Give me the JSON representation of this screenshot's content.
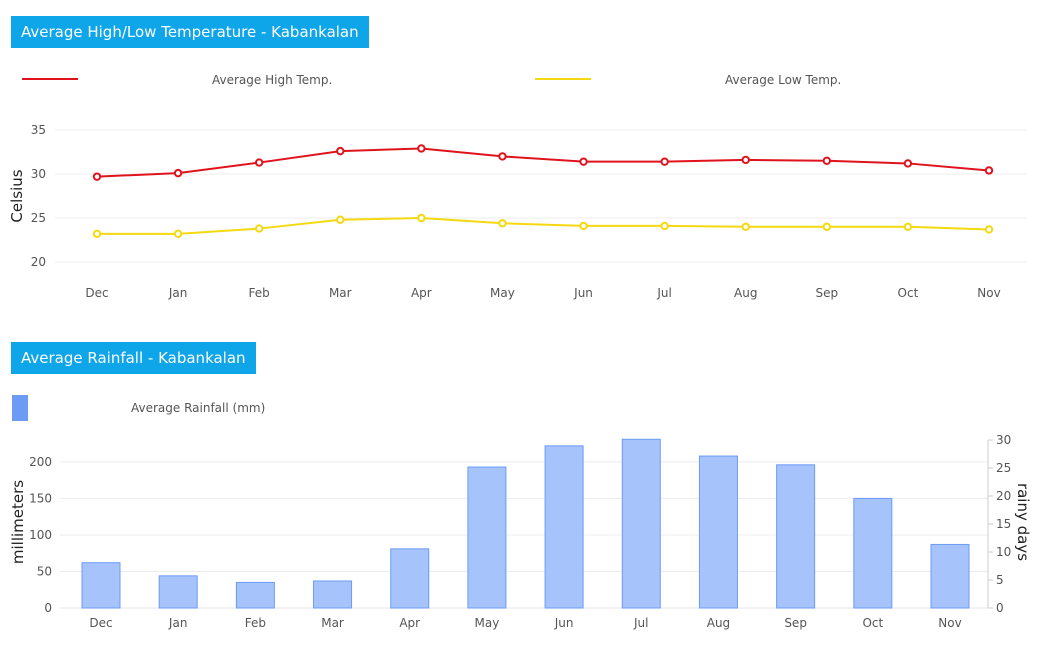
{
  "chart_data": [
    {
      "type": "line",
      "title": "Average High/Low Temperature - Kabankalan",
      "ylabel": "Celsius",
      "xlabel": "",
      "categories": [
        "Dec",
        "Jan",
        "Feb",
        "Mar",
        "Apr",
        "May",
        "Jun",
        "Jul",
        "Aug",
        "Sep",
        "Oct",
        "Nov"
      ],
      "ylim": [
        20,
        35
      ],
      "yticks": [
        20,
        25,
        30,
        35
      ],
      "grid": true,
      "legend_position": "top",
      "series": [
        {
          "name": "Average High Temp.",
          "color": "#e0131c",
          "values": [
            29.7,
            30.1,
            31.3,
            32.6,
            32.9,
            32.0,
            31.4,
            31.4,
            31.6,
            31.5,
            31.2,
            30.4
          ]
        },
        {
          "name": "Average Low Temp.",
          "color": "#f5d90f",
          "values": [
            23.2,
            23.2,
            23.8,
            24.8,
            25.0,
            24.4,
            24.1,
            24.1,
            24.0,
            24.0,
            24.0,
            23.7
          ]
        }
      ]
    },
    {
      "type": "bar",
      "title": "Average Rainfall - Kabankalan",
      "ylabel": "millimeters",
      "y2label": "rainy days",
      "xlabel": "",
      "categories": [
        "Dec",
        "Jan",
        "Feb",
        "Mar",
        "Apr",
        "May",
        "Jun",
        "Jul",
        "Aug",
        "Sep",
        "Oct",
        "Nov"
      ],
      "ylim": [
        0,
        230
      ],
      "yticks": [
        0,
        50,
        100,
        150,
        200
      ],
      "y2lim": [
        0,
        30
      ],
      "y2ticks": [
        0,
        5,
        10,
        15,
        20,
        25,
        30
      ],
      "grid": true,
      "legend_position": "top-left",
      "series": [
        {
          "name": "Average Rainfall (mm)",
          "color": "#6b9bf5",
          "values": [
            62,
            44,
            35,
            37,
            81,
            193,
            222,
            231,
            208,
            196,
            150,
            87
          ]
        }
      ]
    }
  ]
}
